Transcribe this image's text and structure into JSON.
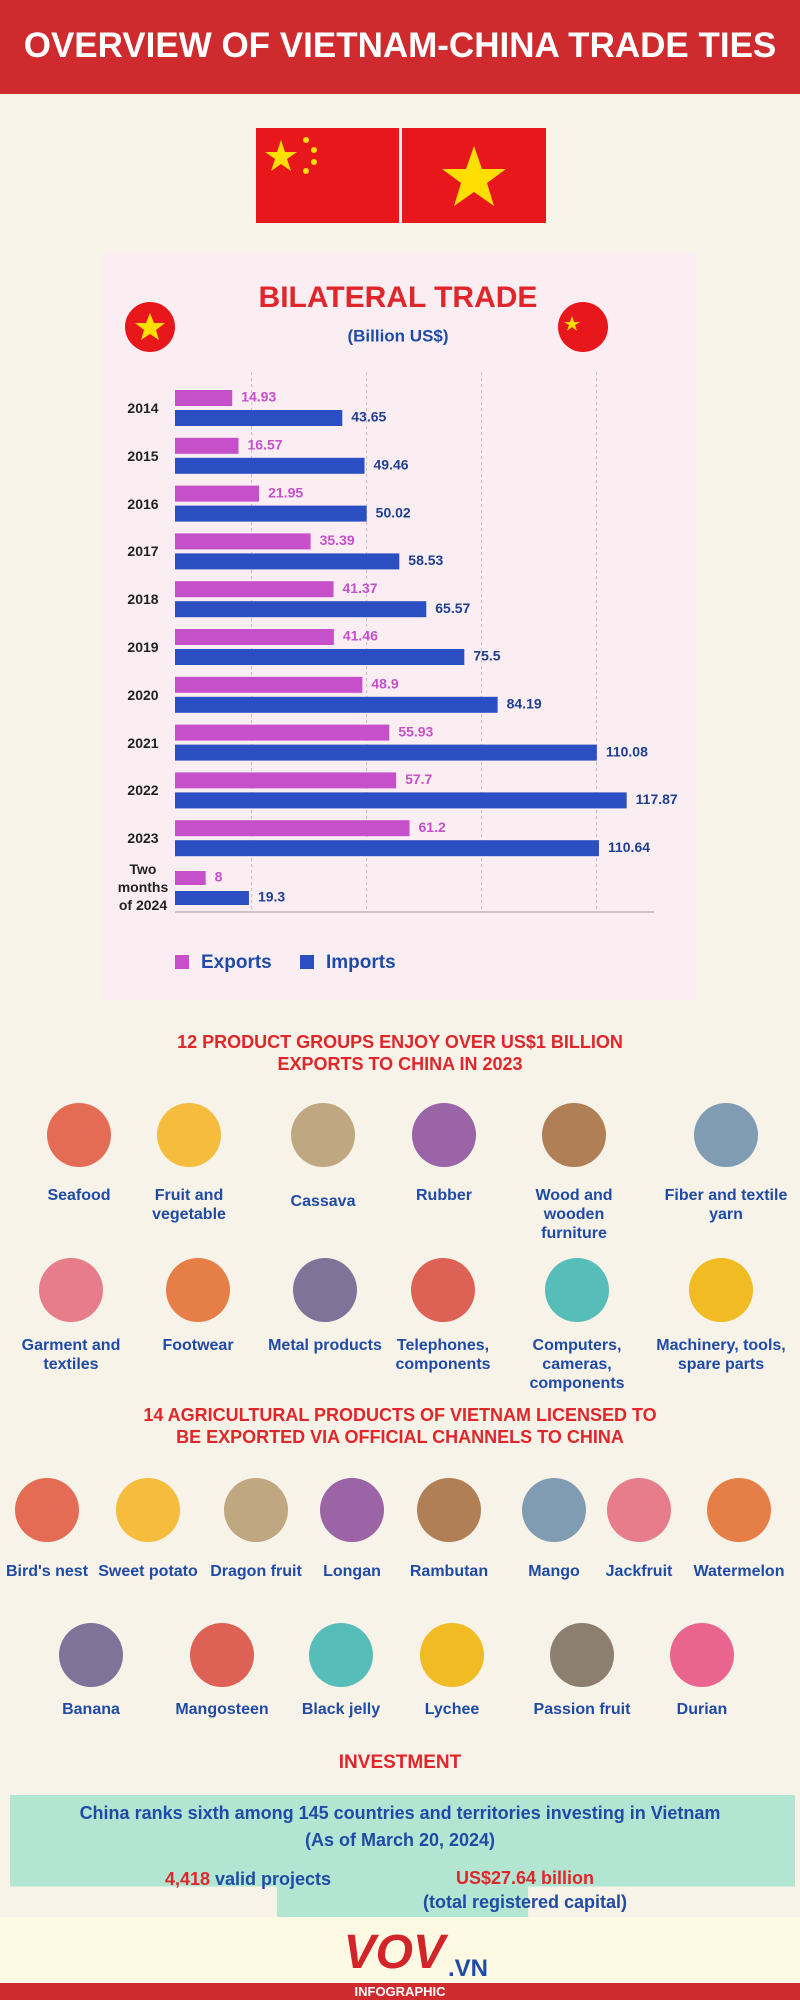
{
  "title": "OVERVIEW OF VIETNAM-CHINA TRADE TIES",
  "chart_data": {
    "type": "bar",
    "orientation": "horizontal",
    "title": "BILATERAL TRADE",
    "subtitle": "(Billion US$)",
    "categories": [
      "2014",
      "2015",
      "2016",
      "2017",
      "2018",
      "2019",
      "2020",
      "2021",
      "2022",
      "2023",
      "Two months of 2024"
    ],
    "series": [
      {
        "name": "Exports",
        "color": "#c650c9",
        "values": [
          14.93,
          16.57,
          21.95,
          35.39,
          41.37,
          41.46,
          48.9,
          55.93,
          57.7,
          61.2,
          8
        ]
      },
      {
        "name": "Imports",
        "color": "#2b4fc3",
        "values": [
          43.65,
          49.46,
          50.02,
          58.53,
          65.57,
          75.5,
          84.19,
          110.08,
          117.87,
          110.64,
          19.3
        ]
      }
    ],
    "xlim": [
      0,
      125
    ],
    "xticks": [
      20,
      50,
      80,
      110
    ],
    "grid": true
  },
  "products": {
    "title_lines": [
      "12 PRODUCT GROUPS ENJOY OVER US$1 BILLION",
      "EXPORTS TO CHINA IN 2023"
    ],
    "items": [
      "Seafood",
      "Fruit and vegetable",
      "Cassava",
      "Rubber",
      "Wood and wooden furniture",
      "Fiber and textile yarn",
      "Garment and textiles",
      "Footwear",
      "Metal products",
      "Telephones, components",
      "Computers, cameras, components",
      "Machinery, tools, spare parts"
    ]
  },
  "agriculture": {
    "title_lines": [
      "14 AGRICULTURAL PRODUCTS OF VIETNAM LICENSED TO",
      "BE EXPORTED VIA OFFICIAL CHANNELS TO CHINA"
    ],
    "items": [
      "Bird's nest",
      "Sweet potato",
      "Dragon fruit",
      "Longan",
      "Rambutan",
      "Mango",
      "Jackfruit",
      "Watermelon",
      "Banana",
      "Mangosteen",
      "Black jelly",
      "Lychee",
      "Passion fruit",
      "Durian"
    ]
  },
  "investment": {
    "title": "INVESTMENT",
    "ranking": "China ranks sixth among 145 countries and territories investing in Vietnam",
    "date": "(As of March 20, 2024)",
    "projects_count": "4,418",
    "projects_text": "valid projects",
    "capital": "US$27.64 billion",
    "capital_note": "(total registered capital)"
  },
  "footer": {
    "brand": "VOV",
    "domain": ".VN",
    "tag": "INFOGRAPHIC"
  }
}
